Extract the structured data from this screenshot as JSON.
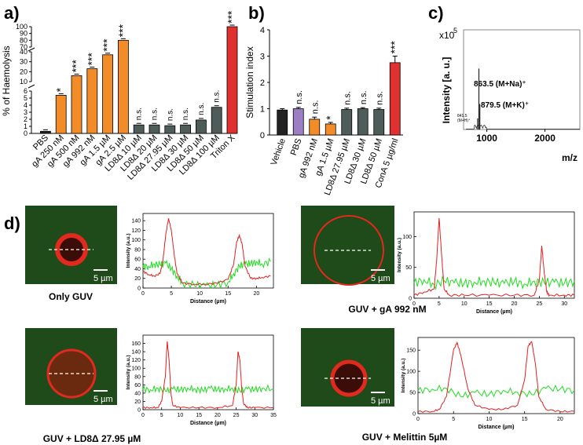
{
  "panel_labels": {
    "a": "a)",
    "b": "b)",
    "c": "c)",
    "d": "d)"
  },
  "scale_bar": "5 µm",
  "chart_data": [
    {
      "panel": "a",
      "type": "bar",
      "ylabel": "% of Haemolysis",
      "categories": [
        "PBS",
        "gA 250 nM",
        "gA 500 nM",
        "gA 992 nM",
        "gA 1.5 µM",
        "gA 2.5 µM",
        "LD8Δ 10 µM",
        "LD8Δ 20 µM",
        "LD8Δ 27.95 µM",
        "LD8Δ 30 µM",
        "LD8Δ 50 µM",
        "LD8Δ 100 µM",
        "Triton X"
      ],
      "values": [
        0.3,
        5.4,
        16,
        23,
        37,
        80,
        1.2,
        1.2,
        1.1,
        1.2,
        1.9,
        3.7,
        100
      ],
      "colors": [
        "#222222",
        "#f28c28",
        "#f28c28",
        "#f28c28",
        "#f28c28",
        "#f28c28",
        "#4f5d5a",
        "#4f5d5a",
        "#4f5d5a",
        "#4f5d5a",
        "#4f5d5a",
        "#4f5d5a",
        "#e03030"
      ],
      "significance": [
        "",
        "*",
        "***",
        "***",
        "***",
        "***",
        "n.s.",
        "n.s.",
        "n.s.",
        "n.s.",
        "n.s.",
        "n.s.",
        "***"
      ],
      "broken_axis_segments": [
        {
          "range": [
            0,
            6
          ],
          "ticks": [
            "0",
            "1",
            "2",
            "3",
            "4",
            "5",
            "6"
          ]
        },
        {
          "range": [
            10,
            40
          ],
          "ticks": [
            "10",
            "20",
            "30",
            "40"
          ]
        },
        {
          "range": [
            70,
            100
          ],
          "ticks": [
            "70",
            "80",
            "90",
            "100"
          ]
        }
      ]
    },
    {
      "panel": "b",
      "type": "bar",
      "ylabel": "Stimulation index",
      "categories": [
        "Vehicle",
        "PBS",
        "gA 992 nM",
        "gA 1.5 µM",
        "LD8Δ 27.95 µM",
        "LD8Δ 30 µM",
        "LD8Δ 50 µM",
        "ConA 5 µg/ml"
      ],
      "values": [
        0.95,
        1.0,
        0.6,
        0.42,
        0.97,
        1.0,
        0.97,
        2.75
      ],
      "errors": [
        0.05,
        0.05,
        0.08,
        0.06,
        0.05,
        0.04,
        0.05,
        0.25
      ],
      "colors": [
        "#222222",
        "#9b7fc2",
        "#f28c28",
        "#f28c28",
        "#4f5d5a",
        "#4f5d5a",
        "#4f5d5a",
        "#e03030"
      ],
      "significance": [
        "",
        "n.s.",
        "n.s.",
        "*",
        "n.s.",
        "n.s.",
        "n.s.",
        "***"
      ],
      "ylim": [
        0,
        4
      ],
      "yticks": [
        "0",
        "1",
        "2",
        "3",
        "4"
      ]
    },
    {
      "panel": "c",
      "type": "line",
      "ylabel": "Intensity [a. u.]",
      "xlabel": "m/z",
      "y_multiplier": "x10",
      "y_exponent": "5",
      "xticks": [
        "1000",
        "2000"
      ],
      "xlim": [
        600,
        2600
      ],
      "ylim": [
        0,
        4.5
      ],
      "peaks": [
        {
          "x": 841.5,
          "y": 0.5,
          "label": "841.5",
          "sublabel": "(M+H)⁺"
        },
        {
          "x": 863.5,
          "y": 2.75,
          "label": "863.5 (M+Na)⁺"
        },
        {
          "x": 879.5,
          "y": 1.15,
          "label": "879.5 (M+K)⁺"
        }
      ]
    },
    {
      "panel": "d1",
      "type": "line",
      "title": "Only GUV",
      "xlabel": "Distance (µm)",
      "ylabel": "Intensity (a.u.)",
      "xlim": [
        0,
        23
      ],
      "ylim": [
        0,
        155
      ],
      "xticks": [
        "0",
        "5",
        "10",
        "15",
        "20"
      ],
      "yticks": [
        "0",
        "20",
        "40",
        "60",
        "80",
        "100",
        "120",
        "140"
      ],
      "series": [
        {
          "name": "red",
          "color": "#e02020",
          "x": [
            0,
            1,
            2,
            3,
            3.5,
            4,
            4.5,
            5,
            5.5,
            6,
            7,
            9,
            11,
            13,
            15,
            16,
            16.5,
            17,
            17.5,
            18,
            19,
            20,
            21,
            22.5
          ],
          "values": [
            35,
            28,
            25,
            30,
            55,
            110,
            145,
            120,
            70,
            30,
            10,
            8,
            8,
            10,
            18,
            50,
            95,
            110,
            90,
            45,
            20,
            20,
            22,
            25
          ]
        },
        {
          "name": "green",
          "color": "#20dd20",
          "x": [
            0,
            1,
            2,
            3,
            4,
            5,
            6,
            7,
            9,
            11,
            13,
            15,
            16,
            17,
            18,
            19,
            20,
            21,
            22.5
          ],
          "values": [
            45,
            45,
            50,
            48,
            52,
            40,
            25,
            10,
            6,
            5,
            6,
            12,
            30,
            45,
            50,
            50,
            55,
            50,
            55
          ]
        }
      ]
    },
    {
      "panel": "d2",
      "type": "line",
      "title": "GUV + gA 992 nM",
      "xlabel": "Distance (µm)",
      "ylabel": "Intensity (a.u.)",
      "xlim": [
        0,
        32
      ],
      "ylim": [
        0,
        140
      ],
      "xticks": [
        "0",
        "5",
        "10",
        "15",
        "20",
        "25",
        "30"
      ],
      "yticks": [
        "0",
        "50",
        "100"
      ],
      "series": [
        {
          "name": "red",
          "color": "#e02020",
          "x": [
            0,
            2,
            4,
            4.5,
            5,
            5.5,
            6,
            7,
            10,
            15,
            20,
            24,
            25,
            25.5,
            26,
            26.5,
            27,
            30,
            32
          ],
          "values": [
            5,
            10,
            15,
            60,
            130,
            70,
            15,
            5,
            5,
            5,
            5,
            5,
            30,
            85,
            40,
            10,
            5,
            5,
            5
          ]
        },
        {
          "name": "green",
          "color": "#20dd20",
          "x": [
            0,
            2,
            4,
            6,
            8,
            10,
            12,
            14,
            16,
            18,
            20,
            22,
            24,
            26,
            28,
            30,
            32
          ],
          "values": [
            25,
            30,
            22,
            28,
            25,
            24,
            26,
            28,
            25,
            24,
            27,
            23,
            28,
            25,
            26,
            24,
            28
          ]
        }
      ]
    },
    {
      "panel": "d3",
      "type": "line",
      "title": "GUV + LD8Δ 27.95 µM",
      "xlabel": "Distance (µm)",
      "ylabel": "Intensity (a.u.)",
      "xlim": [
        0,
        35
      ],
      "ylim": [
        0,
        180
      ],
      "xticks": [
        "0",
        "5",
        "10",
        "15",
        "20",
        "25",
        "30",
        "35"
      ],
      "yticks": [
        "0",
        "20",
        "40",
        "60",
        "80",
        "100",
        "120",
        "140",
        "160"
      ],
      "series": [
        {
          "name": "red",
          "color": "#e02020",
          "x": [
            0,
            2,
            4,
            5,
            6,
            6.5,
            7,
            7.5,
            8,
            10,
            15,
            20,
            24,
            25,
            25.5,
            26,
            26.5,
            27,
            28,
            30,
            35
          ],
          "values": [
            5,
            5,
            5,
            20,
            80,
            165,
            120,
            40,
            10,
            5,
            5,
            5,
            10,
            60,
            140,
            120,
            50,
            15,
            5,
            5,
            5
          ]
        },
        {
          "name": "green",
          "color": "#20dd20",
          "x": [
            0,
            2,
            4,
            6,
            8,
            10,
            12,
            14,
            16,
            18,
            20,
            22,
            24,
            26,
            28,
            30,
            32,
            35
          ],
          "values": [
            50,
            48,
            52,
            45,
            50,
            48,
            52,
            50,
            46,
            52,
            48,
            50,
            52,
            45,
            50,
            48,
            52,
            50
          ]
        }
      ]
    },
    {
      "panel": "d4",
      "type": "line",
      "title": "GUV + Melittin 5µM",
      "xlabel": "Distance (µm)",
      "ylabel": "Intensity (a.u.)",
      "xlim": [
        0,
        22
      ],
      "ylim": [
        0,
        180
      ],
      "xticks": [
        "0",
        "5",
        "10",
        "15",
        "20"
      ],
      "yticks": [
        "0",
        "50",
        "100",
        "150"
      ],
      "series": [
        {
          "name": "red",
          "color": "#e02020",
          "x": [
            0,
            2,
            3,
            4,
            5,
            5.5,
            6,
            7,
            8,
            10,
            12,
            14,
            15,
            15.5,
            16,
            16.5,
            17,
            18,
            20,
            22
          ],
          "values": [
            5,
            5,
            10,
            40,
            150,
            168,
            140,
            60,
            20,
            10,
            10,
            20,
            80,
            160,
            170,
            120,
            40,
            10,
            5,
            5
          ]
        },
        {
          "name": "green",
          "color": "#20dd20",
          "x": [
            0,
            2,
            4,
            6,
            8,
            10,
            12,
            14,
            16,
            18,
            20,
            22
          ],
          "values": [
            55,
            58,
            60,
            40,
            50,
            45,
            55,
            50,
            45,
            60,
            58,
            55
          ]
        }
      ]
    }
  ]
}
